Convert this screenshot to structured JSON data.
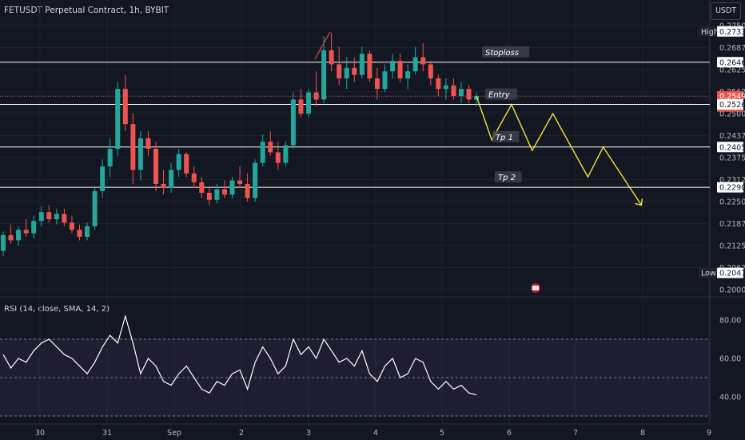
{
  "header": {
    "title": "FETUSDT Perpetual Contract, 1h, BYBIT",
    "currency": "USDT"
  },
  "rsi_label": "RSI (14, close, SMA, 14, 2)",
  "colors": {
    "background": "#131722",
    "bull": "#26a69a",
    "bear": "#ef5350",
    "projection": "#ffeb3b",
    "level_line": "#ffffff",
    "rsi_line": "#ffffff",
    "rsi_band": "#7e57c2"
  },
  "chart_data": [
    {
      "type": "candlestick",
      "title": "FETUSDT Perpetual Contract, 1h, BYBIT",
      "x_tick_labels": [
        "30",
        "31",
        "Sep",
        "2",
        "3",
        "4",
        "5",
        "6",
        "7",
        "8",
        "9"
      ],
      "y_tick_labels": [
        "0.27500",
        "0.26875",
        "0.26250",
        "0.25625",
        "0.25000",
        "0.24375",
        "0.23750",
        "0.23125",
        "0.22500",
        "0.21875",
        "0.21250",
        "0.20625",
        "0.20000"
      ],
      "ylim": [
        0.2,
        0.275
      ],
      "grid": true,
      "price_tags": [
        {
          "label": "High",
          "value": "0.27335"
        },
        {
          "label": "",
          "value": "0.26460"
        },
        {
          "label": "",
          "value": "0.25495",
          "sub": "44:17",
          "current": true
        },
        {
          "label": "",
          "value": "0.25260"
        },
        {
          "label": "",
          "value": "0.24050"
        },
        {
          "label": "",
          "value": "0.22905"
        },
        {
          "label": "Low",
          "value": "0.20475"
        }
      ],
      "levels": [
        {
          "name": "Stoploss",
          "value": 0.2646
        },
        {
          "name": "Entry",
          "value": 0.2526
        },
        {
          "name": "Tp 1",
          "value": 0.2405
        },
        {
          "name": "Tp 2",
          "value": 0.22905
        }
      ],
      "current_price": 0.25495,
      "candles": [
        [
          0.211,
          0.2165,
          0.2095,
          0.2155
        ],
        [
          0.2155,
          0.2185,
          0.213,
          0.214
        ],
        [
          0.214,
          0.218,
          0.2125,
          0.217
        ],
        [
          0.217,
          0.22,
          0.215,
          0.216
        ],
        [
          0.216,
          0.221,
          0.2145,
          0.2195
        ],
        [
          0.2195,
          0.2235,
          0.218,
          0.222
        ],
        [
          0.222,
          0.224,
          0.219,
          0.22
        ],
        [
          0.22,
          0.223,
          0.2185,
          0.2215
        ],
        [
          0.2215,
          0.223,
          0.218,
          0.219
        ],
        [
          0.219,
          0.221,
          0.216,
          0.217
        ],
        [
          0.217,
          0.2185,
          0.214,
          0.215
        ],
        [
          0.215,
          0.219,
          0.214,
          0.218
        ],
        [
          0.218,
          0.229,
          0.217,
          0.228
        ],
        [
          0.228,
          0.237,
          0.226,
          0.235
        ],
        [
          0.235,
          0.243,
          0.232,
          0.24
        ],
        [
          0.24,
          0.259,
          0.238,
          0.257
        ],
        [
          0.257,
          0.261,
          0.245,
          0.247
        ],
        [
          0.247,
          0.25,
          0.23,
          0.234
        ],
        [
          0.234,
          0.245,
          0.231,
          0.243
        ],
        [
          0.243,
          0.245,
          0.238,
          0.24
        ],
        [
          0.24,
          0.242,
          0.228,
          0.23
        ],
        [
          0.23,
          0.234,
          0.227,
          0.229
        ],
        [
          0.229,
          0.236,
          0.2275,
          0.234
        ],
        [
          0.234,
          0.24,
          0.232,
          0.2385
        ],
        [
          0.2385,
          0.239,
          0.232,
          0.233
        ],
        [
          0.233,
          0.235,
          0.229,
          0.2305
        ],
        [
          0.2305,
          0.232,
          0.226,
          0.2275
        ],
        [
          0.2275,
          0.229,
          0.224,
          0.2255
        ],
        [
          0.2255,
          0.23,
          0.2245,
          0.2285
        ],
        [
          0.2285,
          0.231,
          0.226,
          0.227
        ],
        [
          0.227,
          0.232,
          0.226,
          0.231
        ],
        [
          0.231,
          0.235,
          0.229,
          0.23
        ],
        [
          0.23,
          0.233,
          0.225,
          0.226
        ],
        [
          0.226,
          0.237,
          0.225,
          0.236
        ],
        [
          0.236,
          0.244,
          0.235,
          0.242
        ],
        [
          0.242,
          0.245,
          0.238,
          0.239
        ],
        [
          0.239,
          0.242,
          0.234,
          0.236
        ],
        [
          0.236,
          0.242,
          0.235,
          0.241
        ],
        [
          0.241,
          0.256,
          0.24,
          0.254
        ],
        [
          0.254,
          0.257,
          0.249,
          0.25
        ],
        [
          0.25,
          0.257,
          0.249,
          0.256
        ],
        [
          0.256,
          0.262,
          0.252,
          0.254
        ],
        [
          0.254,
          0.272,
          0.253,
          0.268
        ],
        [
          0.268,
          0.273,
          0.262,
          0.264
        ],
        [
          0.264,
          0.269,
          0.258,
          0.26
        ],
        [
          0.26,
          0.266,
          0.257,
          0.263
        ],
        [
          0.263,
          0.266,
          0.259,
          0.261
        ],
        [
          0.261,
          0.269,
          0.26,
          0.267
        ],
        [
          0.267,
          0.268,
          0.259,
          0.26
        ],
        [
          0.26,
          0.263,
          0.254,
          0.257
        ],
        [
          0.257,
          0.264,
          0.256,
          0.262
        ],
        [
          0.262,
          0.267,
          0.26,
          0.265
        ],
        [
          0.265,
          0.267,
          0.259,
          0.26
        ],
        [
          0.26,
          0.264,
          0.257,
          0.262
        ],
        [
          0.262,
          0.269,
          0.261,
          0.266
        ],
        [
          0.266,
          0.27,
          0.262,
          0.264
        ],
        [
          0.264,
          0.265,
          0.258,
          0.26
        ],
        [
          0.26,
          0.261,
          0.255,
          0.257
        ],
        [
          0.257,
          0.26,
          0.254,
          0.258
        ],
        [
          0.258,
          0.26,
          0.254,
          0.255
        ],
        [
          0.255,
          0.259,
          0.253,
          0.257
        ],
        [
          0.257,
          0.258,
          0.253,
          0.254
        ],
        [
          0.254,
          0.256,
          0.252,
          0.255
        ]
      ]
    },
    {
      "type": "line",
      "title": "RSI (14, close, SMA, 14, 2)",
      "y_tick_labels": [
        "80.00",
        "60.00",
        "40.00"
      ],
      "ylim": [
        30,
        90
      ],
      "bands": [
        70,
        50,
        30
      ],
      "values": [
        62,
        55,
        60,
        58,
        64,
        68,
        70,
        66,
        62,
        60,
        56,
        52,
        58,
        66,
        72,
        68,
        82,
        68,
        52,
        60,
        56,
        48,
        46,
        52,
        56,
        50,
        44,
        42,
        48,
        46,
        52,
        54,
        44,
        58,
        66,
        60,
        52,
        56,
        70,
        62,
        66,
        60,
        70,
        64,
        58,
        60,
        56,
        64,
        52,
        48,
        56,
        60,
        50,
        52,
        60,
        58,
        48,
        44,
        48,
        44,
        46,
        42,
        41
      ]
    }
  ]
}
